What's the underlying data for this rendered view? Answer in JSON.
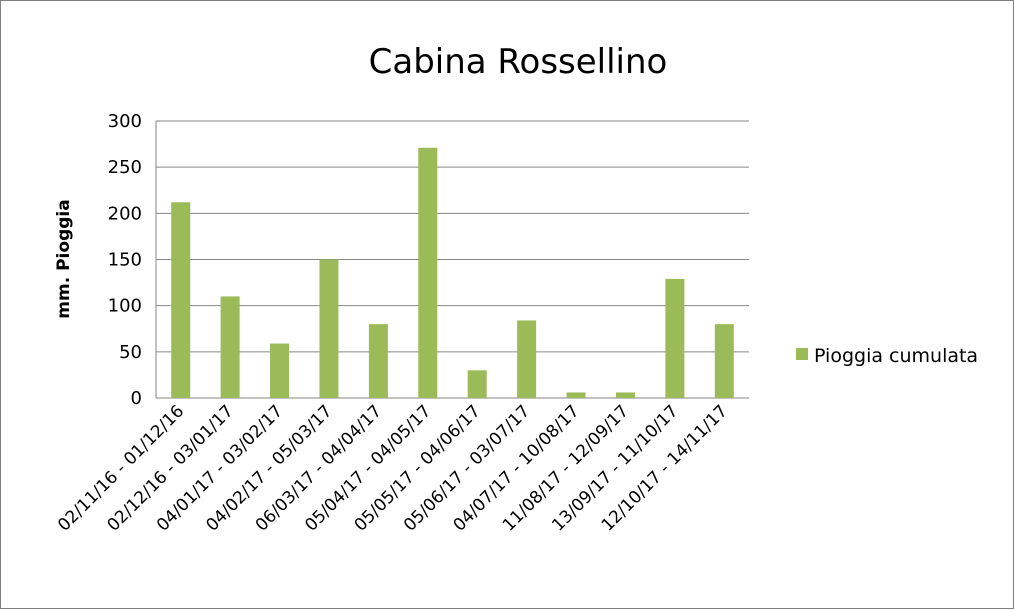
{
  "chart_data": {
    "type": "bar",
    "title": "Cabina Rossellino",
    "xlabel": "",
    "ylabel": "mm. Pioggia",
    "ylim": [
      0,
      300
    ],
    "yticks": [
      0,
      50,
      100,
      150,
      200,
      250,
      300
    ],
    "grid": true,
    "legend_position": "right",
    "categories": [
      "02/11/16 - 01/12/16",
      "02/12/16 - 03/01/17",
      "04/01/17 - 03/02/17",
      "04/02/17 - 05/03/17",
      "06/03/17 - 04/04/17",
      "05/04/17 - 04/05/17",
      "05/05/17 - 04/06/17",
      "05/06/17 - 03/07/17",
      "04/07/17 - 10/08/17",
      "11/08/17 - 12/09/17",
      "13/09/17 - 11/10/17",
      "12/10/17 - 14/11/17"
    ],
    "series": [
      {
        "name": "Pioggia cumulata",
        "color": "#9bbb59",
        "values": [
          212,
          110,
          59,
          150,
          80,
          271,
          30,
          84,
          6,
          6,
          129,
          80
        ]
      }
    ]
  }
}
